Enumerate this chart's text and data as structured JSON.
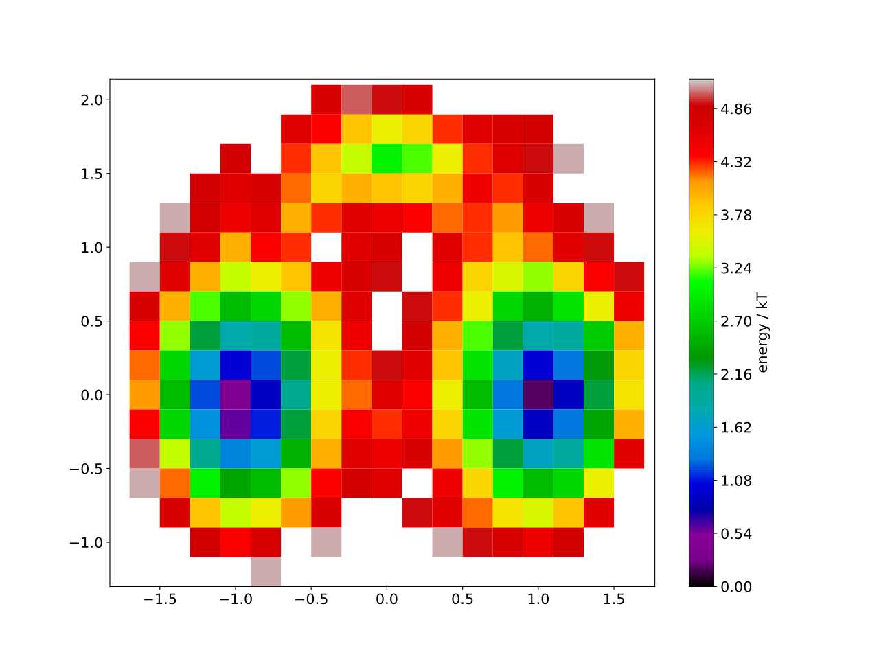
{
  "chart_data": {
    "type": "heatmap",
    "clabel": "energy / kT",
    "x": [
      -1.6,
      -1.4,
      -1.2,
      -1.0,
      -0.8,
      -0.6,
      -0.4,
      -0.2,
      0.0,
      0.2,
      0.4,
      0.6,
      0.8,
      1.0,
      1.2,
      1.4,
      1.6
    ],
    "y": [
      2.0,
      1.8,
      1.6,
      1.4,
      1.2,
      1.0,
      0.8,
      0.6,
      0.4,
      0.2,
      0.0,
      -0.2,
      -0.4,
      -0.6,
      -0.8,
      -1.0,
      -1.2
    ],
    "cells": [
      [
        null,
        null,
        null,
        null,
        null,
        null,
        4.7,
        5.0,
        4.9,
        4.7,
        null,
        null,
        null,
        null,
        null,
        null,
        null
      ],
      [
        null,
        null,
        null,
        null,
        null,
        4.6,
        4.4,
        3.9,
        3.6,
        3.8,
        4.3,
        4.6,
        4.7,
        4.8,
        null,
        null,
        null
      ],
      [
        null,
        null,
        null,
        4.8,
        null,
        4.3,
        3.9,
        3.4,
        3.0,
        3.2,
        3.6,
        4.3,
        4.6,
        4.9,
        5.1,
        null,
        null
      ],
      [
        null,
        null,
        4.8,
        4.6,
        4.7,
        4.2,
        3.8,
        4.0,
        3.9,
        3.8,
        4.0,
        4.5,
        4.3,
        4.7,
        null,
        null,
        null
      ],
      [
        null,
        5.1,
        4.8,
        4.5,
        4.6,
        4.0,
        4.3,
        4.6,
        4.5,
        4.4,
        4.2,
        4.3,
        4.1,
        4.5,
        4.7,
        5.1,
        null
      ],
      [
        null,
        4.9,
        4.6,
        4.0,
        4.4,
        4.3,
        null,
        4.6,
        4.7,
        null,
        4.6,
        4.3,
        3.9,
        4.2,
        4.6,
        4.9,
        null
      ],
      [
        5.1,
        4.6,
        4.0,
        3.4,
        3.6,
        3.9,
        4.5,
        4.7,
        4.9,
        null,
        4.5,
        3.8,
        3.5,
        3.3,
        3.8,
        4.4,
        4.9
      ],
      [
        4.7,
        4.0,
        3.2,
        2.6,
        2.8,
        3.3,
        4.0,
        4.6,
        null,
        4.9,
        4.3,
        3.6,
        2.8,
        2.5,
        2.9,
        3.6,
        4.5
      ],
      [
        4.4,
        3.3,
        2.2,
        1.8,
        1.9,
        2.6,
        3.7,
        4.5,
        null,
        4.8,
        4.0,
        3.2,
        2.2,
        1.8,
        1.9,
        2.7,
        4.0
      ],
      [
        4.2,
        2.8,
        1.6,
        1.0,
        1.2,
        2.2,
        3.6,
        4.3,
        4.9,
        4.6,
        3.9,
        2.9,
        1.7,
        1.0,
        1.3,
        2.3,
        3.8
      ],
      [
        4.1,
        2.6,
        1.2,
        0.4,
        0.9,
        2.0,
        3.6,
        4.2,
        4.6,
        4.4,
        3.6,
        2.6,
        1.3,
        0.2,
        0.9,
        2.2,
        3.7
      ],
      [
        4.4,
        2.8,
        1.5,
        0.6,
        1.1,
        2.2,
        3.8,
        4.4,
        4.3,
        4.5,
        3.8,
        2.9,
        1.6,
        0.9,
        1.3,
        2.4,
        4.0
      ],
      [
        5.0,
        3.4,
        2.0,
        1.4,
        1.6,
        2.5,
        4.0,
        4.6,
        4.5,
        4.7,
        4.1,
        3.3,
        2.2,
        1.7,
        1.9,
        2.9,
        4.6
      ],
      [
        5.1,
        4.2,
        3.0,
        2.4,
        2.6,
        3.3,
        4.4,
        4.8,
        4.6,
        null,
        4.5,
        3.8,
        3.0,
        2.6,
        2.8,
        3.6,
        null
      ],
      [
        null,
        4.7,
        3.9,
        3.4,
        3.6,
        4.1,
        4.7,
        null,
        null,
        4.9,
        4.6,
        4.2,
        3.7,
        3.5,
        3.9,
        4.6,
        null
      ],
      [
        null,
        null,
        4.8,
        4.4,
        4.7,
        null,
        5.1,
        null,
        null,
        null,
        5.1,
        4.9,
        4.7,
        4.5,
        4.8,
        null,
        null
      ],
      [
        null,
        null,
        null,
        null,
        5.1,
        null,
        null,
        null,
        null,
        null,
        null,
        null,
        null,
        null,
        null,
        null,
        null
      ]
    ],
    "xlim": [
      -1.83,
      1.77
    ],
    "ylim": [
      -1.3,
      2.14
    ],
    "xticks": [
      {
        "value": -1.5,
        "label": "−1.5"
      },
      {
        "value": -1.0,
        "label": "−1.0"
      },
      {
        "value": -0.5,
        "label": "−0.5"
      },
      {
        "value": 0.0,
        "label": "0.0"
      },
      {
        "value": 0.5,
        "label": "0.5"
      },
      {
        "value": 1.0,
        "label": "1.0"
      },
      {
        "value": 1.5,
        "label": "1.5"
      }
    ],
    "yticks": [
      {
        "value": -1.0,
        "label": "−1.0"
      },
      {
        "value": -0.5,
        "label": "−0.5"
      },
      {
        "value": 0.0,
        "label": "0.0"
      },
      {
        "value": 0.5,
        "label": "0.5"
      },
      {
        "value": 1.0,
        "label": "1.0"
      },
      {
        "value": 1.5,
        "label": "1.5"
      },
      {
        "value": 2.0,
        "label": "2.0"
      }
    ],
    "clim": [
      0,
      5.16
    ],
    "cticks": [
      {
        "value": 0,
        "label": "0.00"
      },
      {
        "value": 0.54,
        "label": "0.54"
      },
      {
        "value": 1.08,
        "label": "1.08"
      },
      {
        "value": 1.62,
        "label": "1.62"
      },
      {
        "value": 2.16,
        "label": "2.16"
      },
      {
        "value": 2.7,
        "label": "2.70"
      },
      {
        "value": 3.24,
        "label": "3.24"
      },
      {
        "value": 3.78,
        "label": "3.78"
      },
      {
        "value": 4.32,
        "label": "4.32"
      },
      {
        "value": 4.86,
        "label": "4.86"
      }
    ]
  }
}
